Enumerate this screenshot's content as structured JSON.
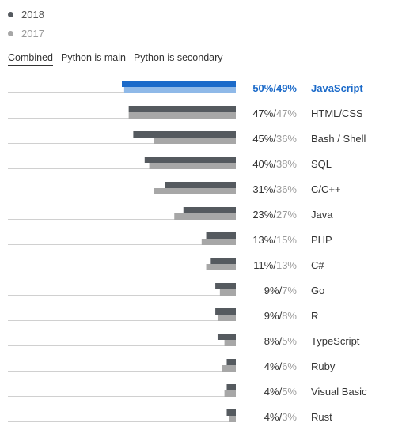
{
  "legend": [
    {
      "label": "2018",
      "color": "#555a5f"
    },
    {
      "label": "2017",
      "color": "#a7a7a7"
    }
  ],
  "tabs": [
    {
      "label": "Combined",
      "active": true
    },
    {
      "label": "Python is main",
      "active": false
    },
    {
      "label": "Python is secondary",
      "active": false
    }
  ],
  "colors": {
    "bar_2018": "#555a5f",
    "bar_2017": "#a7a7a7",
    "highlight_2018": "#1b6ac9",
    "highlight_2017": "#8fb9e8",
    "baseline": "#d0d0d0"
  },
  "chart_data": {
    "type": "bar",
    "orientation": "horizontal",
    "categories": [
      "JavaScript",
      "HTML/CSS",
      "Bash / Shell",
      "SQL",
      "C/C++",
      "Java",
      "PHP",
      "C#",
      "Go",
      "R",
      "TypeScript",
      "Ruby",
      "Visual Basic",
      "Rust"
    ],
    "series": [
      {
        "name": "2018",
        "values": [
          50,
          47,
          45,
          40,
          31,
          23,
          13,
          11,
          9,
          9,
          8,
          4,
          4,
          4
        ]
      },
      {
        "name": "2017",
        "values": [
          49,
          47,
          36,
          38,
          36,
          27,
          15,
          13,
          7,
          8,
          5,
          6,
          5,
          3
        ]
      }
    ],
    "value_labels": [
      "50%/49%",
      "47%/47%",
      "45%/36%",
      "40%/38%",
      "31%/36%",
      "23%/27%",
      "13%/15%",
      "11%/13%",
      "9%/7%",
      "9%/8%",
      "8%/5%",
      "4%/6%",
      "4%/5%",
      "4%/3%"
    ],
    "value_labels_2018": [
      "50%/",
      "47%/",
      "45%/",
      "40%/",
      "31%/",
      "23%/",
      "13%/",
      "11%/",
      "9%/",
      "9%/",
      "8%/",
      "4%/",
      "4%/",
      "4%/"
    ],
    "value_labels_2017": [
      "49%",
      "47%",
      "36%",
      "38%",
      "36%",
      "27%",
      "15%",
      "13%",
      "7%",
      "8%",
      "5%",
      "6%",
      "5%",
      "3%"
    ],
    "highlighted": "JavaScript",
    "unit": "%",
    "xlim": [
      0,
      50
    ],
    "title": "",
    "xlabel": "",
    "ylabel": "",
    "grid": false,
    "legend_position": "top-left"
  }
}
